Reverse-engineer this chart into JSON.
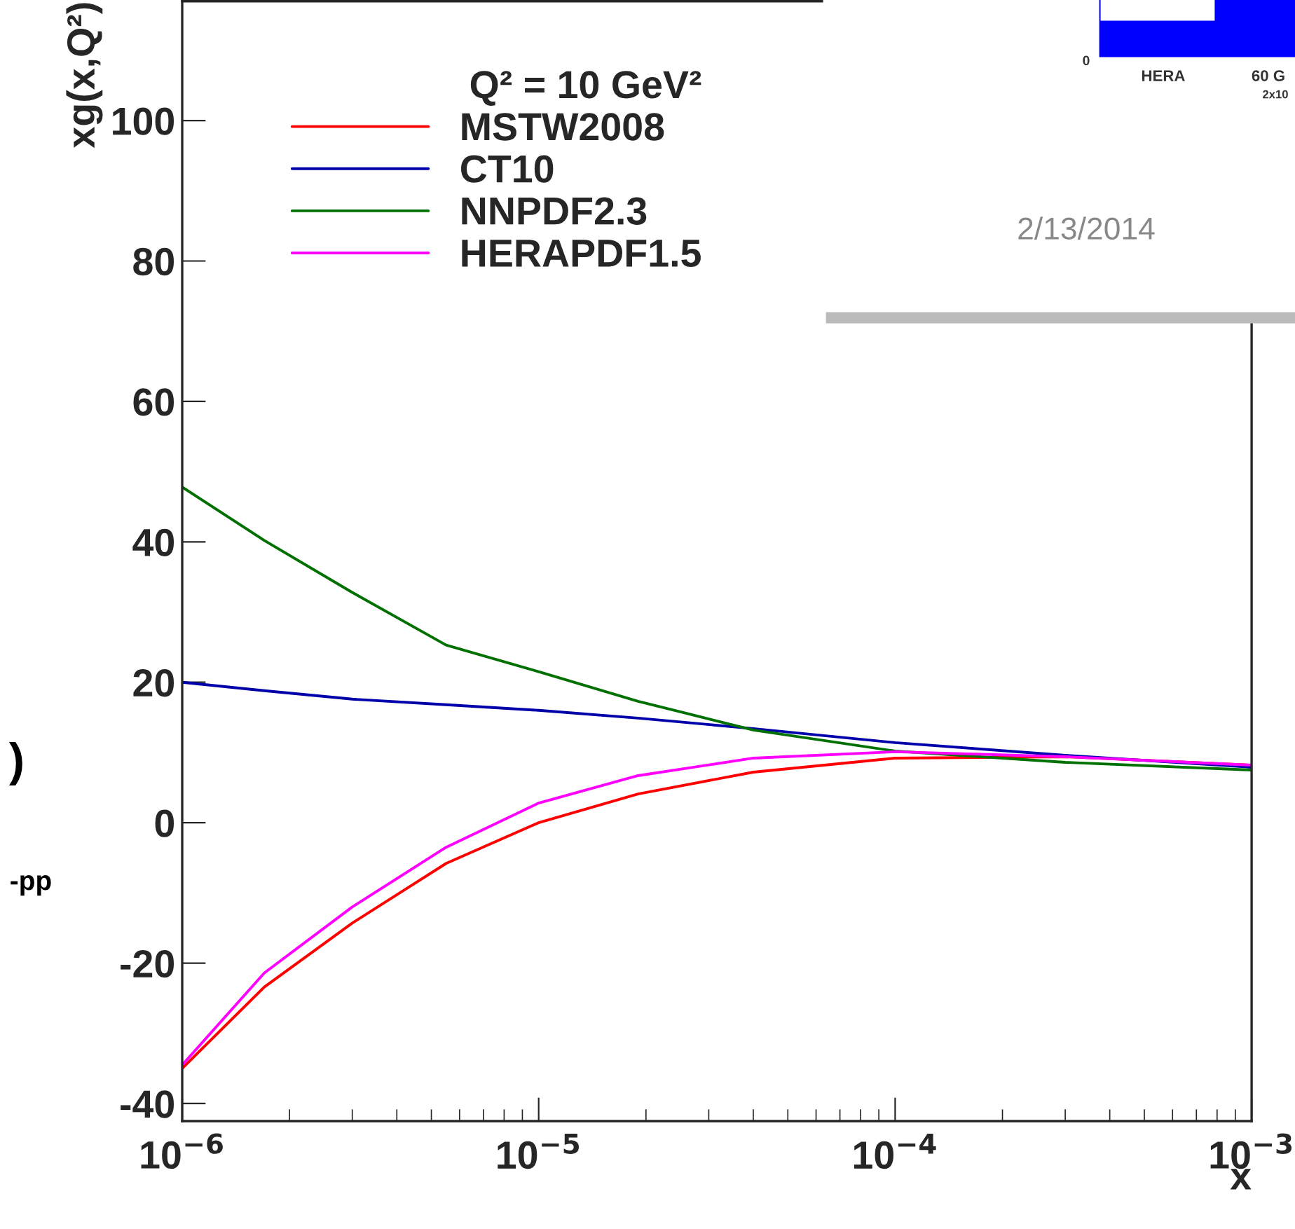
{
  "chart_data": {
    "type": "line",
    "xlabel": "x",
    "ylabel": "xg(x,Q²)",
    "legend_title": "Q² = 10 GeV²",
    "x": [
      1e-06,
      1.7e-06,
      3e-06,
      5.5e-06,
      1e-05,
      1.9e-05,
      4e-05,
      0.0001,
      0.0003,
      0.001
    ],
    "series": [
      {
        "name": "MSTW2008",
        "color": "#ff0000",
        "values": [
          -35,
          -23.4,
          -14.3,
          -5.8,
          0,
          4.1,
          7.2,
          9.2,
          9.4,
          8.2
        ]
      },
      {
        "name": "CT10",
        "color": "#0000aa",
        "values": [
          20,
          18.8,
          17.6,
          16.8,
          16.0,
          14.9,
          13.4,
          11.4,
          9.6,
          7.9
        ]
      },
      {
        "name": "NNPDF2.3",
        "color": "#007000",
        "values": [
          47.8,
          40.2,
          32.8,
          25.3,
          21.5,
          17.3,
          13.2,
          10.2,
          8.6,
          7.5
        ]
      },
      {
        "name": "HERAPDF1.5",
        "color": "#ff00ff",
        "values": [
          -34.5,
          -21.4,
          -12.0,
          -3.5,
          2.8,
          6.7,
          9.2,
          10.1,
          9.4,
          8.2
        ]
      }
    ],
    "log": "x",
    "xlim": [
      1e-06,
      0.001
    ],
    "xticks": [
      {
        "value": 1e-06,
        "label": "10$^{−6}$"
      },
      {
        "value": 1e-05,
        "label": "10$^{−5}$"
      },
      {
        "value": 0.0001,
        "label": "10$^{−4}$"
      },
      {
        "value": 0.001,
        "label": "10$^{−3}$"
      }
    ],
    "ylim": [
      -42.5,
      117
    ],
    "yticks": [
      -40,
      -20,
      0,
      20,
      40,
      60,
      80,
      100
    ],
    "grid": false,
    "legend": "top left",
    "marker": "none",
    "line_style": "solid",
    "annotations": [
      "2/13/2014",
      "HERA",
      "60 G",
      "2x10",
      "0",
      ")",
      "-pp"
    ]
  }
}
